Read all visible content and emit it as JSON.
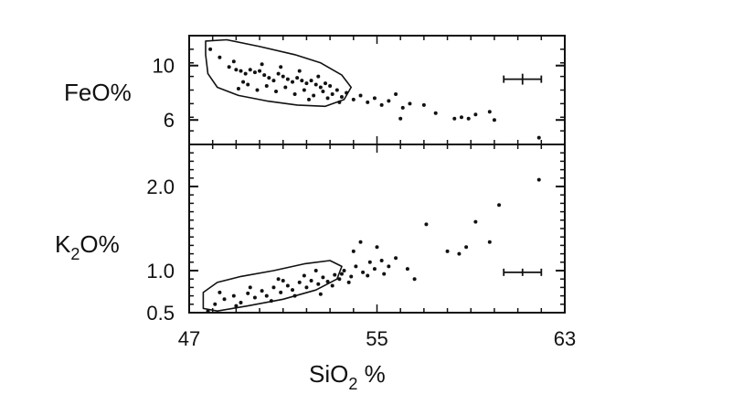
{
  "chart_data": [
    {
      "type": "scatter",
      "panel": "top",
      "xlim": [
        47,
        63
      ],
      "ylim": [
        4.2,
        12.2
      ],
      "ylabel": "FeO%",
      "yticks": [
        6,
        10
      ],
      "yticklabels": [
        "6",
        "10"
      ],
      "points": [
        [
          47.9,
          11.2
        ],
        [
          48.3,
          10.6
        ],
        [
          48.7,
          9.9
        ],
        [
          49.0,
          9.7
        ],
        [
          49.2,
          9.6
        ],
        [
          49.4,
          9.4
        ],
        [
          49.6,
          9.7
        ],
        [
          49.8,
          9.5
        ],
        [
          50.0,
          9.6
        ],
        [
          50.2,
          9.3
        ],
        [
          50.4,
          9.1
        ],
        [
          50.6,
          8.9
        ],
        [
          50.8,
          9.4
        ],
        [
          51.0,
          9.2
        ],
        [
          51.2,
          9.0
        ],
        [
          51.4,
          8.8
        ],
        [
          51.6,
          9.1
        ],
        [
          51.8,
          8.9
        ],
        [
          52.0,
          8.7
        ],
        [
          52.2,
          8.9
        ],
        [
          52.4,
          8.6
        ],
        [
          52.6,
          8.4
        ],
        [
          52.8,
          8.7
        ],
        [
          49.1,
          8.3
        ],
        [
          49.5,
          8.6
        ],
        [
          49.9,
          8.2
        ],
        [
          50.3,
          8.5
        ],
        [
          50.7,
          8.1
        ],
        [
          51.1,
          8.4
        ],
        [
          51.5,
          7.9
        ],
        [
          51.9,
          8.2
        ],
        [
          52.3,
          7.8
        ],
        [
          52.7,
          8.1
        ],
        [
          52.9,
          7.6
        ],
        [
          53.1,
          7.9
        ],
        [
          53.3,
          8.2
        ],
        [
          53.5,
          7.7
        ],
        [
          53.7,
          8.0
        ],
        [
          54.0,
          7.5
        ],
        [
          54.3,
          7.8
        ],
        [
          54.6,
          7.3
        ],
        [
          54.9,
          7.6
        ],
        [
          55.2,
          7.1
        ],
        [
          55.5,
          7.4
        ],
        [
          55.8,
          7.9
        ],
        [
          56.1,
          6.9
        ],
        [
          56.4,
          7.2
        ],
        [
          56.0,
          6.1
        ],
        [
          57.0,
          7.1
        ],
        [
          57.5,
          6.5
        ],
        [
          58.3,
          6.1
        ],
        [
          58.6,
          6.2
        ],
        [
          58.9,
          6.1
        ],
        [
          59.2,
          6.4
        ],
        [
          59.8,
          6.6
        ],
        [
          60.0,
          6.0
        ],
        [
          61.9,
          4.7
        ],
        [
          50.1,
          10.1
        ],
        [
          50.9,
          9.9
        ],
        [
          51.7,
          9.6
        ],
        [
          52.5,
          9.2
        ],
        [
          48.9,
          10.3
        ],
        [
          49.3,
          8.8
        ],
        [
          52.1,
          7.5
        ],
        [
          53.0,
          8.5
        ],
        [
          53.4,
          7.3
        ]
      ],
      "error_bar": {
        "x": 61.2,
        "y": 9.0,
        "xerr": 0.8,
        "yerr": 0.4
      },
      "field_outline": [
        [
          47.7,
          11.8
        ],
        [
          48.6,
          11.9
        ],
        [
          50.0,
          11.4
        ],
        [
          51.5,
          10.8
        ],
        [
          52.6,
          10.2
        ],
        [
          53.5,
          9.3
        ],
        [
          53.9,
          8.4
        ],
        [
          53.6,
          7.5
        ],
        [
          52.8,
          7.0
        ],
        [
          51.6,
          7.1
        ],
        [
          50.3,
          7.4
        ],
        [
          49.1,
          7.8
        ],
        [
          48.2,
          8.4
        ],
        [
          47.8,
          9.4
        ],
        [
          47.7,
          10.8
        ]
      ]
    },
    {
      "type": "scatter",
      "panel": "bottom",
      "xlabel": "SiO2 %",
      "xlabel_main": "SiO",
      "xlabel_sub": "2",
      "xlabel_suffix": " %",
      "xlim": [
        47,
        63
      ],
      "ylim": [
        0.5,
        2.5
      ],
      "xticks": [
        47,
        55,
        63
      ],
      "xticklabels": [
        "47",
        "55",
        "63"
      ],
      "ylabel": "K2O%",
      "ylabel_main": "K",
      "ylabel_sub": "2",
      "ylabel_suffix": "O%",
      "yticks": [
        0.5,
        1.0,
        2.0
      ],
      "yticklabels": [
        "0.5",
        "1.0",
        "2.0"
      ],
      "points": [
        [
          47.8,
          0.52
        ],
        [
          48.1,
          0.6
        ],
        [
          48.5,
          0.66
        ],
        [
          48.9,
          0.7
        ],
        [
          49.2,
          0.62
        ],
        [
          49.5,
          0.73
        ],
        [
          49.8,
          0.68
        ],
        [
          50.1,
          0.76
        ],
        [
          50.3,
          0.7
        ],
        [
          50.6,
          0.8
        ],
        [
          50.9,
          0.74
        ],
        [
          51.2,
          0.82
        ],
        [
          51.4,
          0.77
        ],
        [
          51.7,
          0.86
        ],
        [
          52.0,
          0.8
        ],
        [
          52.2,
          0.88
        ],
        [
          52.5,
          0.84
        ],
        [
          52.7,
          0.92
        ],
        [
          52.9,
          0.87
        ],
        [
          53.2,
          0.95
        ],
        [
          53.4,
          0.9
        ],
        [
          53.6,
          1.0
        ],
        [
          53.9,
          0.93
        ],
        [
          54.1,
          1.05
        ],
        [
          54.4,
          0.98
        ],
        [
          54.7,
          1.1
        ],
        [
          54.9,
          1.02
        ],
        [
          55.2,
          1.12
        ],
        [
          55.5,
          1.05
        ],
        [
          55.8,
          1.15
        ],
        [
          54.0,
          1.23
        ],
        [
          54.3,
          1.34
        ],
        [
          55.0,
          1.28
        ],
        [
          52.4,
          1.0
        ],
        [
          51.0,
          0.88
        ],
        [
          50.5,
          0.64
        ],
        [
          49.0,
          0.58
        ],
        [
          56.3,
          1.02
        ],
        [
          56.6,
          0.9
        ],
        [
          57.1,
          1.55
        ],
        [
          58.0,
          1.23
        ],
        [
          58.5,
          1.2
        ],
        [
          58.8,
          1.28
        ],
        [
          59.2,
          1.58
        ],
        [
          59.8,
          1.34
        ],
        [
          60.2,
          1.78
        ],
        [
          61.9,
          2.08
        ],
        [
          53.1,
          0.82
        ],
        [
          53.5,
          0.96
        ],
        [
          52.6,
          0.72
        ],
        [
          51.5,
          0.7
        ],
        [
          49.6,
          0.8
        ],
        [
          48.3,
          0.74
        ],
        [
          54.6,
          0.94
        ],
        [
          55.3,
          0.96
        ],
        [
          53.8,
          0.86
        ],
        [
          50.8,
          0.9
        ],
        [
          51.9,
          0.94
        ]
      ],
      "error_bar": {
        "x": 61.2,
        "y": 0.98,
        "xerr": 0.8,
        "yerr": 0.03
      },
      "field_outline": [
        [
          47.6,
          0.55
        ],
        [
          48.2,
          0.52
        ],
        [
          49.5,
          0.58
        ],
        [
          51.0,
          0.66
        ],
        [
          52.4,
          0.77
        ],
        [
          53.3,
          0.9
        ],
        [
          53.5,
          1.05
        ],
        [
          53.0,
          1.12
        ],
        [
          51.9,
          1.08
        ],
        [
          50.6,
          1.0
        ],
        [
          49.2,
          0.93
        ],
        [
          48.2,
          0.86
        ],
        [
          47.6,
          0.74
        ]
      ]
    }
  ]
}
